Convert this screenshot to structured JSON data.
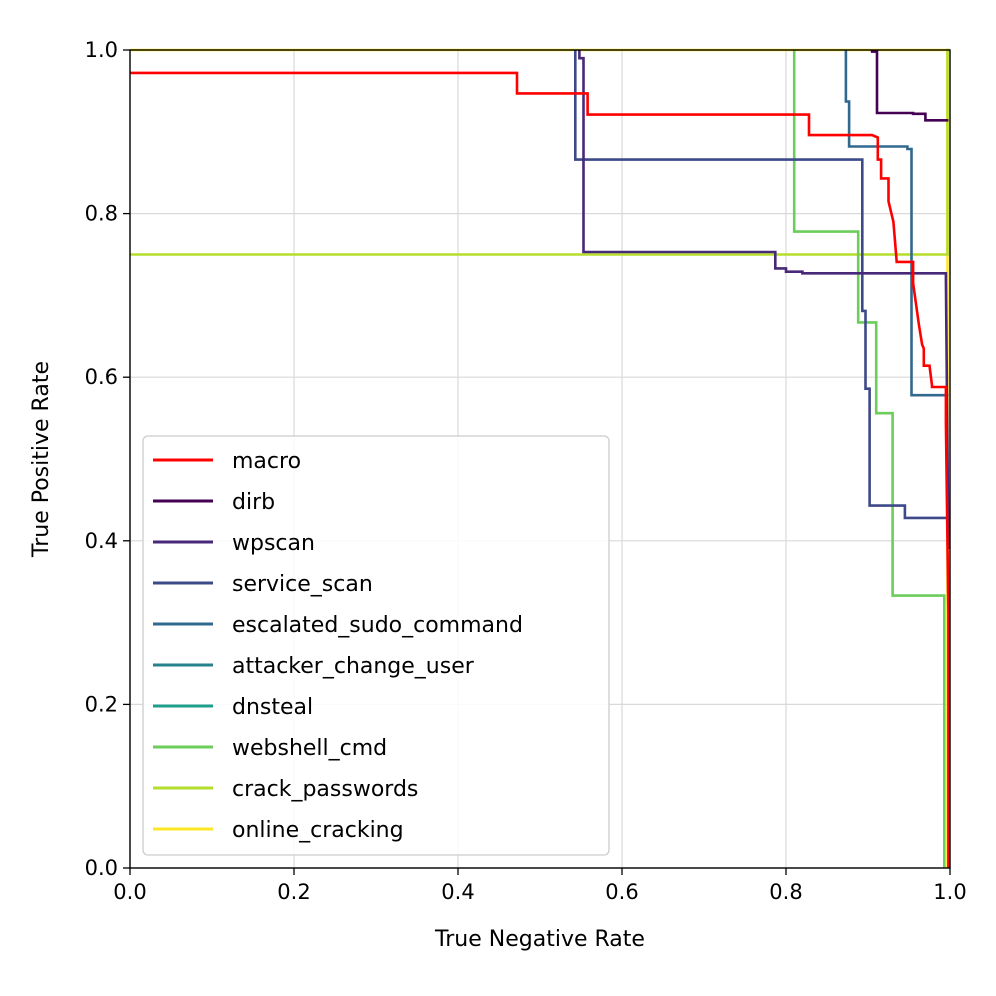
{
  "chart_data": {
    "type": "line",
    "title": "",
    "xlabel": "True Negative Rate",
    "ylabel": "True Positive Rate",
    "xlim": [
      0,
      1
    ],
    "ylim": [
      0,
      1
    ],
    "x_ticks": [
      "0.0",
      "0.2",
      "0.4",
      "0.6",
      "0.8",
      "1.0"
    ],
    "y_ticks": [
      "0.0",
      "0.2",
      "0.4",
      "0.6",
      "0.8",
      "1.0"
    ],
    "grid": true,
    "legend_position": "lower-left",
    "series": [
      {
        "name": "macro",
        "color": "#ff0000",
        "x": [
          0,
          0.472,
          0.472,
          0.558,
          0.558,
          0.828,
          0.828,
          0.905,
          0.912,
          0.912,
          0.916,
          0.916,
          0.925,
          0.925,
          0.931,
          0.935,
          0.935,
          0.955,
          0.955,
          0.962,
          0.966,
          0.968,
          0.968,
          0.975,
          0.978,
          0.978,
          0.995,
          0.995,
          0.998,
          0.998
        ],
        "y": [
          0.972,
          0.972,
          0.947,
          0.947,
          0.921,
          0.921,
          0.896,
          0.896,
          0.893,
          0.866,
          0.866,
          0.843,
          0.843,
          0.815,
          0.79,
          0.741,
          0.741,
          0.741,
          0.715,
          0.665,
          0.64,
          0.635,
          0.614,
          0.614,
          0.59,
          0.588,
          0.588,
          0.545,
          0.31,
          0
        ]
      },
      {
        "name": "dirb",
        "color": "#440154",
        "x": [
          0.905,
          0.905,
          0.911,
          0.911,
          0.955,
          0.955,
          0.97,
          0.97,
          0.998
        ],
        "y": [
          1.0,
          0.998,
          0.998,
          0.923,
          0.923,
          0.922,
          0.922,
          0.914,
          0.914
        ]
      },
      {
        "name": "wpscan",
        "color": "#482878",
        "x": [
          0.548,
          0.548,
          0.553,
          0.553,
          0.787,
          0.787,
          0.8,
          0.8,
          0.82,
          0.82,
          0.995,
          0.995,
          0.998
        ],
        "y": [
          1.0,
          0.99,
          0.99,
          0.753,
          0.753,
          0.733,
          0.733,
          0.729,
          0.729,
          0.727,
          0.727,
          0.72,
          0.39
        ]
      },
      {
        "name": "service_scan",
        "color": "#3e4989",
        "x": [
          0.543,
          0.543,
          0.547,
          0.547,
          0.893,
          0.893,
          0.897,
          0.897,
          0.902,
          0.902,
          0.907,
          0.907,
          0.945,
          0.945,
          0.998
        ],
        "y": [
          1.0,
          0.866,
          0.866,
          0.866,
          0.866,
          0.681,
          0.681,
          0.586,
          0.586,
          0.443,
          0.443,
          0.443,
          0.443,
          0.428,
          0.428
        ]
      },
      {
        "name": "escalated_sudo_command",
        "color": "#31688e",
        "x": [
          0.873,
          0.873,
          0.877,
          0.877,
          0.948,
          0.948,
          0.953,
          0.953,
          0.998
        ],
        "y": [
          1.0,
          0.937,
          0.937,
          0.882,
          0.882,
          0.879,
          0.879,
          0.578,
          0.578
        ]
      },
      {
        "name": "attacker_change_user",
        "color": "#26828e",
        "x": [
          0.98,
          0.98
        ],
        "y": [
          1.0,
          1.0
        ]
      },
      {
        "name": "dnsteal",
        "color": "#1f9e89",
        "x": [
          0.992,
          0.992
        ],
        "y": [
          1.0,
          1.0
        ]
      },
      {
        "name": "webshell_cmd",
        "color": "#6ccd5a",
        "x": [
          0.81,
          0.81,
          0.888,
          0.888,
          0.91,
          0.91,
          0.93,
          0.93,
          0.993,
          0.993
        ],
        "y": [
          1.0,
          0.778,
          0.778,
          0.667,
          0.667,
          0.556,
          0.556,
          0.333,
          0.333,
          0
        ]
      },
      {
        "name": "crack_passwords",
        "color": "#b5de2b",
        "x": [
          0,
          0.997,
          0.997,
          1.0
        ],
        "y": [
          0.75,
          0.75,
          1.0,
          1.0
        ]
      },
      {
        "name": "online_cracking",
        "color": "#fde725",
        "x": [
          0,
          0.997,
          0.997
        ],
        "y": [
          1.0,
          1.0,
          0
        ]
      }
    ]
  }
}
